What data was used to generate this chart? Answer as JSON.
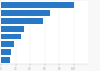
{
  "values": [
    100,
    67,
    58,
    32,
    27,
    18,
    14,
    13
  ],
  "bar_color": "#2878c8",
  "background_color": "#f8f8f8",
  "plot_bg_color": "#ffffff",
  "xlim": [
    0,
    120
  ],
  "bar_height": 0.75,
  "figsize": [
    1.0,
    0.71
  ],
  "dpi": 100,
  "spine_color": "#cccccc",
  "tick_color": "#aaaaaa",
  "grid_color": "#e8e8e8"
}
